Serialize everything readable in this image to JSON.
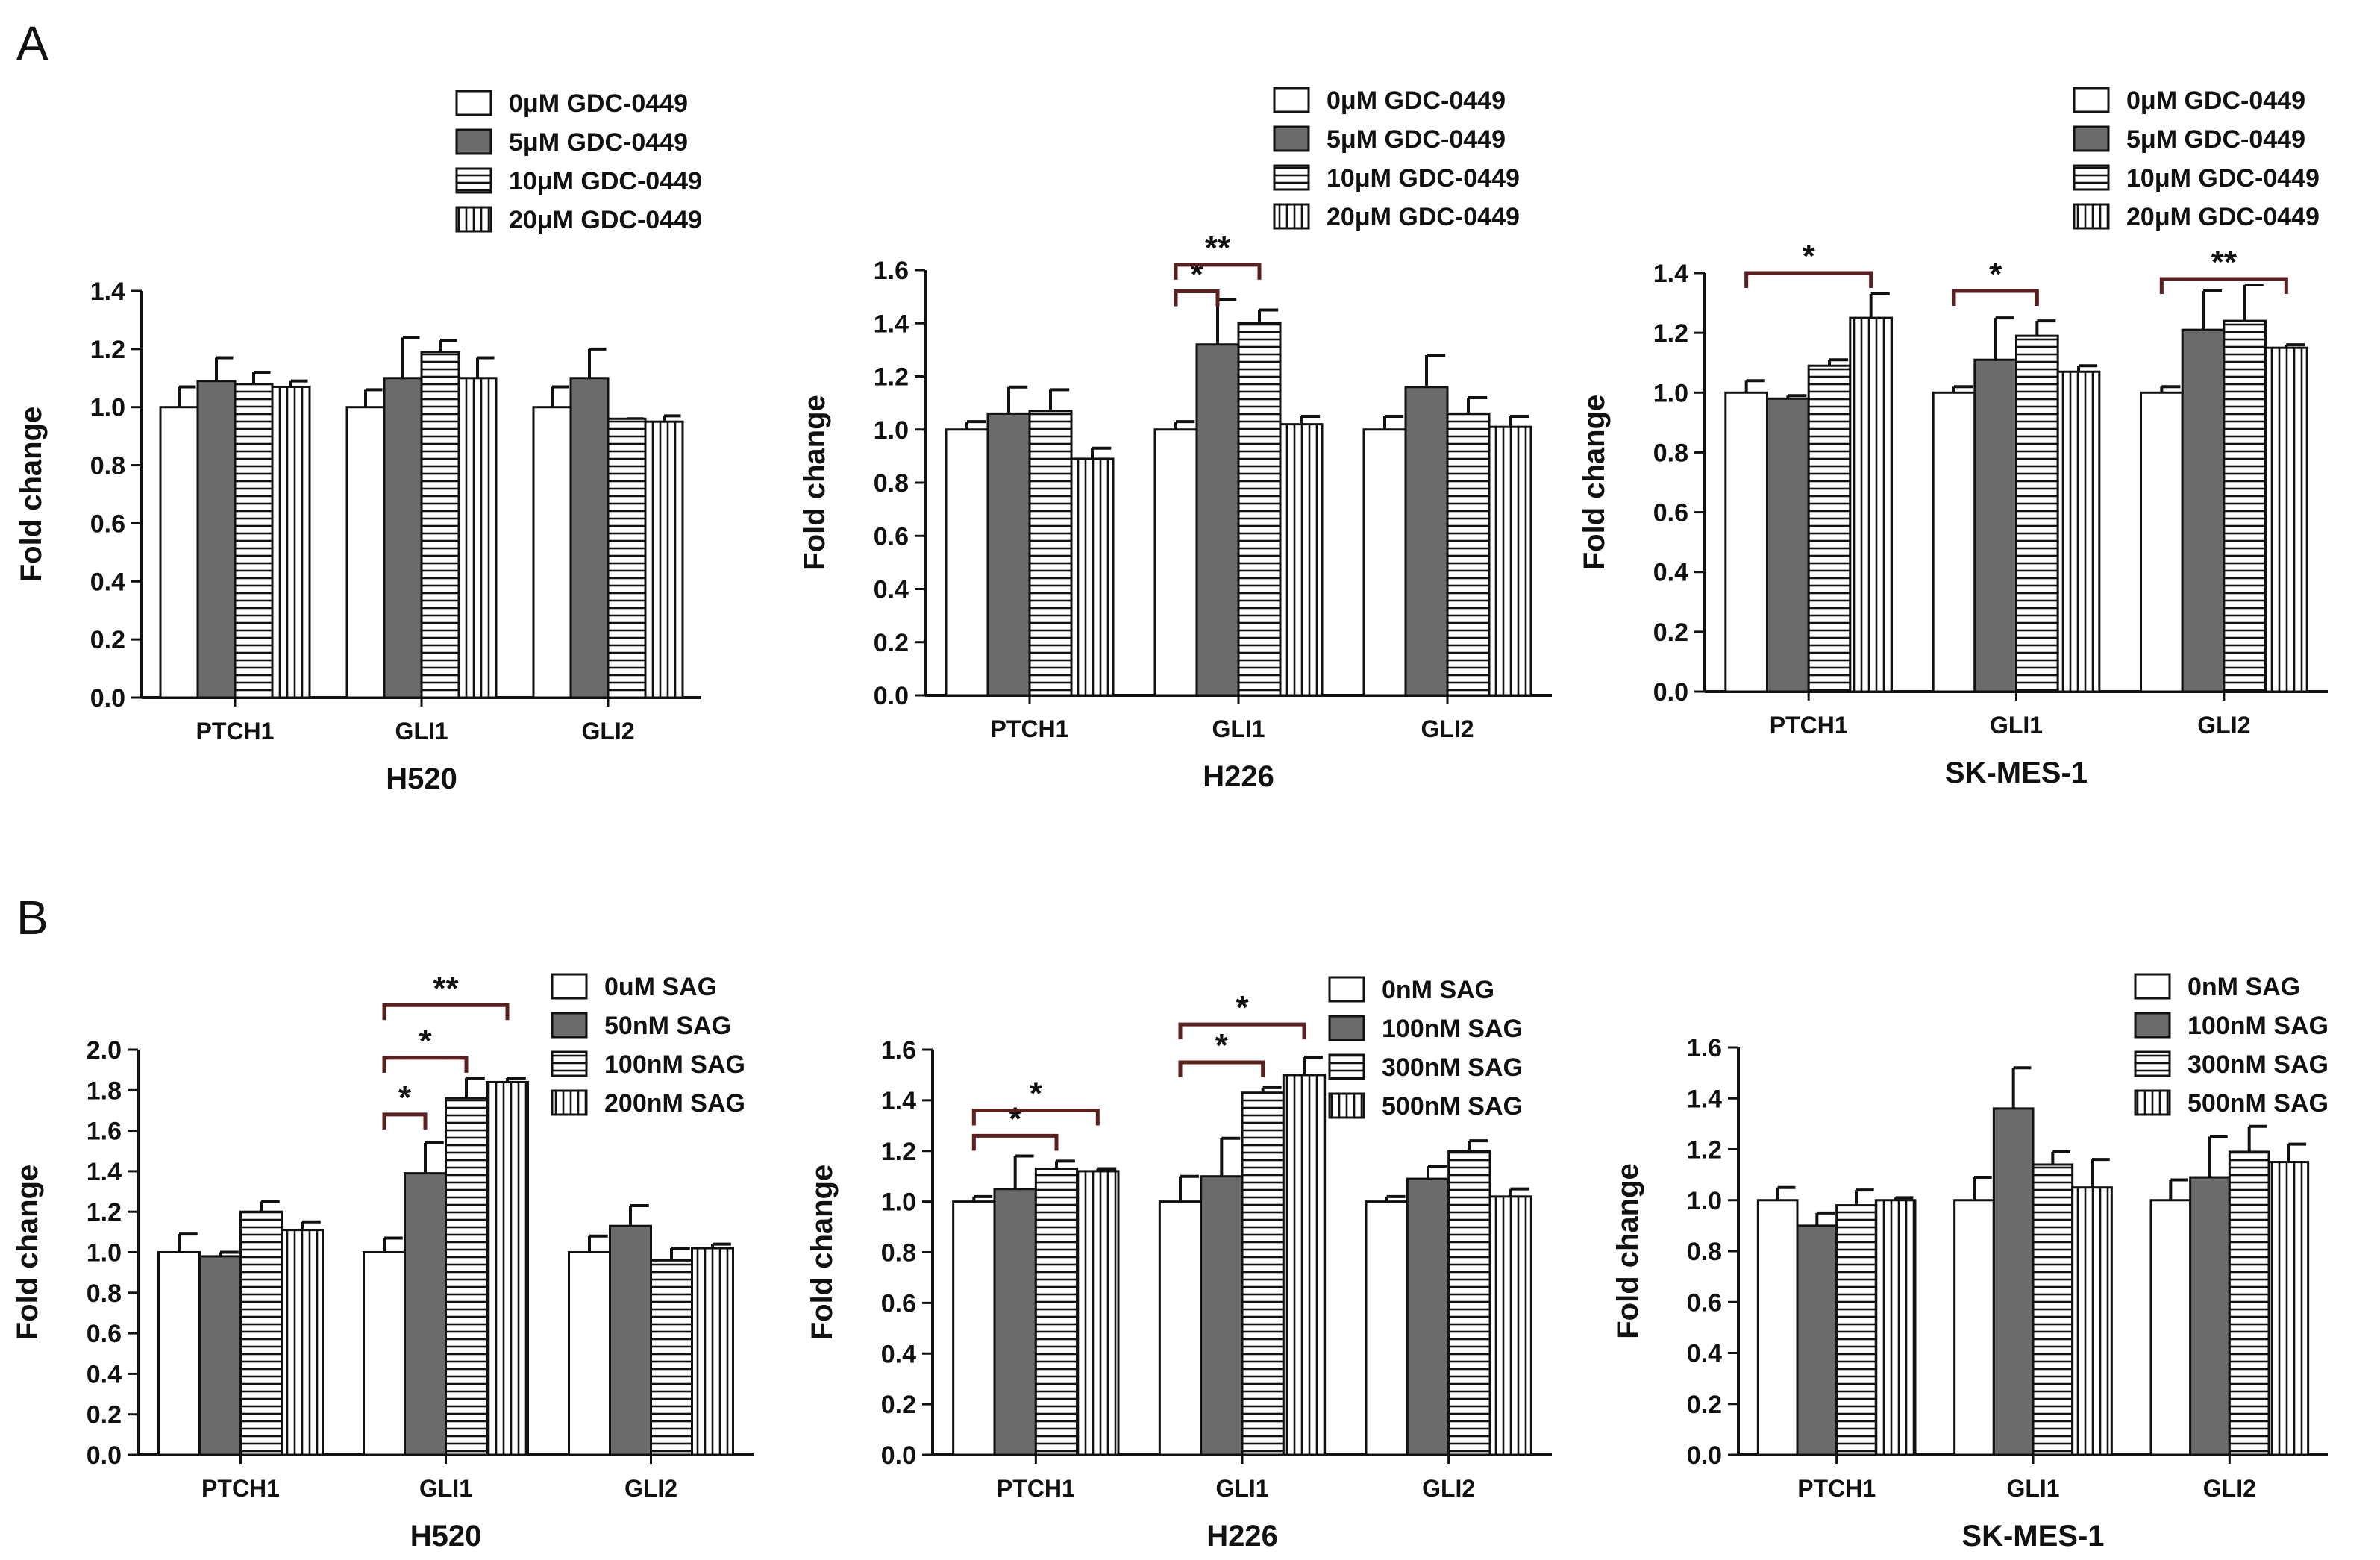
{
  "panel_labels": [
    "A",
    "B"
  ],
  "colors": {
    "gray_fill": "#6b6b6b",
    "stroke": "#111111",
    "bracket": "#5a1f1f"
  },
  "chart_data": [
    {
      "panel": "A",
      "type": "bar",
      "xlabel": "H520",
      "ylabel": "Fold change",
      "categories": [
        "PTCH1",
        "GLI1",
        "GLI2"
      ],
      "ylim": [
        0,
        1.4
      ],
      "yticks": [
        "0.0",
        "0.2",
        "0.4",
        "0.6",
        "0.8",
        "1.0",
        "1.2",
        "1.4"
      ],
      "series": [
        {
          "name": "0μM GDC-0449",
          "pattern": "white",
          "values": [
            1.0,
            1.0,
            1.0
          ],
          "errors": [
            0.07,
            0.06,
            0.07
          ]
        },
        {
          "name": "5μM GDC-0449",
          "pattern": "gray",
          "values": [
            1.09,
            1.1,
            1.1
          ],
          "errors": [
            0.08,
            0.14,
            0.1
          ]
        },
        {
          "name": "10μM GDC-0449",
          "pattern": "hlines",
          "values": [
            1.08,
            1.19,
            0.96
          ],
          "errors": [
            0.04,
            0.04,
            0.0
          ]
        },
        {
          "name": "20μM GDC-0449",
          "pattern": "vlines",
          "values": [
            1.07,
            1.1,
            0.95
          ],
          "errors": [
            0.02,
            0.07,
            0.02
          ]
        }
      ],
      "annotations": []
    },
    {
      "panel": "A",
      "type": "bar",
      "xlabel": "H226",
      "ylabel": "Fold change",
      "categories": [
        "PTCH1",
        "GLI1",
        "GLI2"
      ],
      "ylim": [
        0,
        1.6
      ],
      "yticks": [
        "0.0",
        "0.2",
        "0.4",
        "0.6",
        "0.8",
        "1.0",
        "1.2",
        "1.4",
        "1.6"
      ],
      "series": [
        {
          "name": "0μM GDC-0449",
          "pattern": "white",
          "values": [
            1.0,
            1.0,
            1.0
          ],
          "errors": [
            0.03,
            0.03,
            0.05
          ]
        },
        {
          "name": "5μM GDC-0449",
          "pattern": "gray",
          "values": [
            1.06,
            1.32,
            1.16
          ],
          "errors": [
            0.1,
            0.17,
            0.12
          ]
        },
        {
          "name": "10μM GDC-0449",
          "pattern": "hlines",
          "values": [
            1.07,
            1.4,
            1.06
          ],
          "errors": [
            0.08,
            0.05,
            0.06
          ]
        },
        {
          "name": "20μM GDC-0449",
          "pattern": "vlines",
          "values": [
            0.89,
            1.02,
            1.01
          ],
          "errors": [
            0.04,
            0.03,
            0.04
          ]
        }
      ],
      "annotations": [
        {
          "category": 1,
          "from": 0,
          "to": 1,
          "label": "*",
          "y": 1.52
        },
        {
          "category": 1,
          "from": 0,
          "to": 2,
          "label": "**",
          "y": 1.62
        }
      ]
    },
    {
      "panel": "A",
      "type": "bar",
      "xlabel": "SK-MES-1",
      "ylabel": "Fold change",
      "categories": [
        "PTCH1",
        "GLI1",
        "GLI2"
      ],
      "ylim": [
        0,
        1.4
      ],
      "yticks": [
        "0.0",
        "0.2",
        "0.4",
        "0.6",
        "0.8",
        "1.0",
        "1.2",
        "1.4"
      ],
      "series": [
        {
          "name": "0μM GDC-0449",
          "pattern": "white",
          "values": [
            1.0,
            1.0,
            1.0
          ],
          "errors": [
            0.04,
            0.02,
            0.02
          ]
        },
        {
          "name": "5μM GDC-0449",
          "pattern": "gray",
          "values": [
            0.98,
            1.11,
            1.21
          ],
          "errors": [
            0.01,
            0.14,
            0.13
          ]
        },
        {
          "name": "10μM GDC-0449",
          "pattern": "hlines",
          "values": [
            1.09,
            1.19,
            1.24
          ],
          "errors": [
            0.02,
            0.05,
            0.12
          ]
        },
        {
          "name": "20μM GDC-0449",
          "pattern": "vlines",
          "values": [
            1.25,
            1.07,
            1.15
          ],
          "errors": [
            0.08,
            0.02,
            0.01
          ]
        }
      ],
      "annotations": [
        {
          "category": 0,
          "from": 0,
          "to": 3,
          "label": "*",
          "y": 1.4
        },
        {
          "category": 1,
          "from": 0,
          "to": 2,
          "label": "*",
          "y": 1.34
        },
        {
          "category": 2,
          "from": 0,
          "to": 3,
          "label": "**",
          "y": 1.38
        }
      ]
    },
    {
      "panel": "B",
      "type": "bar",
      "xlabel": "H520",
      "ylabel": "Fold change",
      "categories": [
        "PTCH1",
        "GLI1",
        "GLI2"
      ],
      "ylim": [
        0,
        2.0
      ],
      "yticks": [
        "0.0",
        "0.2",
        "0.4",
        "0.6",
        "0.8",
        "1.0",
        "1.2",
        "1.4",
        "1.6",
        "1.8",
        "2.0"
      ],
      "series": [
        {
          "name": "0uM SAG",
          "pattern": "white",
          "values": [
            1.0,
            1.0,
            1.0
          ],
          "errors": [
            0.09,
            0.07,
            0.08
          ]
        },
        {
          "name": "50nM SAG",
          "pattern": "gray",
          "values": [
            0.98,
            1.39,
            1.13
          ],
          "errors": [
            0.02,
            0.15,
            0.1
          ]
        },
        {
          "name": "100nM SAG",
          "pattern": "hlines",
          "values": [
            1.2,
            1.76,
            0.96
          ],
          "errors": [
            0.05,
            0.1,
            0.06
          ]
        },
        {
          "name": "200nM SAG",
          "pattern": "vlines",
          "values": [
            1.11,
            1.84,
            1.02
          ],
          "errors": [
            0.04,
            0.02,
            0.02
          ]
        }
      ],
      "annotations": [
        {
          "category": 1,
          "from": 0,
          "to": 1,
          "label": "*",
          "y": 1.68
        },
        {
          "category": 1,
          "from": 0,
          "to": 2,
          "label": "*",
          "y": 1.96
        },
        {
          "category": 1,
          "from": 0,
          "to": 3,
          "label": "**",
          "y": 2.22
        }
      ]
    },
    {
      "panel": "B",
      "type": "bar",
      "xlabel": "H226",
      "ylabel": "Fold change",
      "categories": [
        "PTCH1",
        "GLI1",
        "GLI2"
      ],
      "ylim": [
        0,
        1.6
      ],
      "yticks": [
        "0.0",
        "0.2",
        "0.4",
        "0.6",
        "0.8",
        "1.0",
        "1.2",
        "1.4",
        "1.6"
      ],
      "series": [
        {
          "name": "0nM SAG",
          "pattern": "white",
          "values": [
            1.0,
            1.0,
            1.0
          ],
          "errors": [
            0.02,
            0.1,
            0.02
          ]
        },
        {
          "name": "100nM SAG",
          "pattern": "gray",
          "values": [
            1.05,
            1.1,
            1.09
          ],
          "errors": [
            0.13,
            0.15,
            0.05
          ]
        },
        {
          "name": "300nM SAG",
          "pattern": "hlines",
          "values": [
            1.13,
            1.43,
            1.2
          ],
          "errors": [
            0.03,
            0.02,
            0.04
          ]
        },
        {
          "name": "500nM SAG",
          "pattern": "vlines",
          "values": [
            1.12,
            1.5,
            1.02
          ],
          "errors": [
            0.01,
            0.07,
            0.03
          ]
        }
      ],
      "annotations": [
        {
          "category": 0,
          "from": 0,
          "to": 2,
          "label": "*",
          "y": 1.26
        },
        {
          "category": 0,
          "from": 0,
          "to": 3,
          "label": "*",
          "y": 1.36
        },
        {
          "category": 1,
          "from": 0,
          "to": 2,
          "label": "*",
          "y": 1.55
        },
        {
          "category": 1,
          "from": 0,
          "to": 3,
          "label": "*",
          "y": 1.7
        }
      ]
    },
    {
      "panel": "B",
      "type": "bar",
      "xlabel": "SK-MES-1",
      "ylabel": "Fold change",
      "categories": [
        "PTCH1",
        "GLI1",
        "GLI2"
      ],
      "ylim": [
        0,
        1.6
      ],
      "yticks": [
        "0.0",
        "0.2",
        "0.4",
        "0.6",
        "0.8",
        "1.0",
        "1.2",
        "1.4",
        "1.6"
      ],
      "series": [
        {
          "name": "0nM SAG",
          "pattern": "white",
          "values": [
            1.0,
            1.0,
            1.0
          ],
          "errors": [
            0.05,
            0.09,
            0.08
          ]
        },
        {
          "name": "100nM SAG",
          "pattern": "gray",
          "values": [
            0.9,
            1.36,
            1.09
          ],
          "errors": [
            0.05,
            0.16,
            0.16
          ]
        },
        {
          "name": "300nM SAG",
          "pattern": "hlines",
          "values": [
            0.98,
            1.14,
            1.19
          ],
          "errors": [
            0.06,
            0.05,
            0.1
          ]
        },
        {
          "name": "500nM SAG",
          "pattern": "vlines",
          "values": [
            1.0,
            1.05,
            1.15
          ],
          "errors": [
            0.01,
            0.11,
            0.07
          ]
        }
      ],
      "annotations": []
    }
  ]
}
